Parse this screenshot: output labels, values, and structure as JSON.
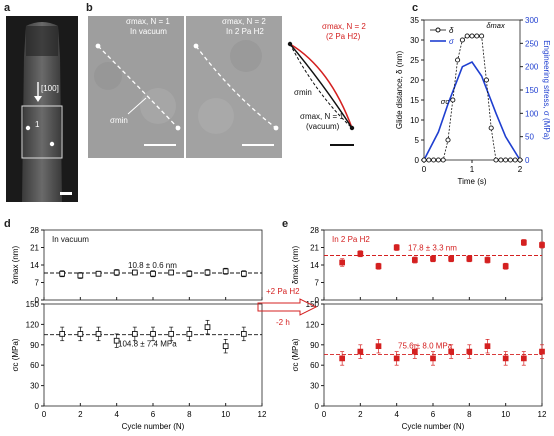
{
  "panel_letters": [
    "a",
    "b",
    "c",
    "d",
    "e"
  ],
  "panel_a": {
    "direction_label": "[100]",
    "marker_1": "1"
  },
  "panel_b": {
    "img1_line1": "σmax, N = 1",
    "img1_line2": "In vacuum",
    "img1_arrow": "σmin",
    "img2_line1": "σmax, N = 2",
    "img2_line2": "In 2 Pa H2",
    "diag_red_line1": "σmax, N = 2",
    "diag_red_line2": "(2 Pa H2)",
    "diag_min": "σmin",
    "diag_black_line1": "σmax, N = 1",
    "diag_black_line2": "(vacuum)",
    "colors": {
      "red": "#d42020",
      "black": "#111111"
    }
  },
  "chart_data": [
    {
      "panel": "c",
      "type": "line",
      "xlabel": "Time (s)",
      "ylabel_left": "Glide distance, δ (nm)",
      "ylabel_right": "Engineering stress, σ (MPa)",
      "xlim": [
        0,
        2
      ],
      "ylim_left": [
        0,
        35
      ],
      "ylim_right": [
        0,
        300
      ],
      "xticks": [
        0,
        1,
        2
      ],
      "yticks_left": [
        0,
        5,
        10,
        15,
        20,
        25,
        30,
        35
      ],
      "yticks_right": [
        0,
        50,
        100,
        150,
        200,
        250,
        300
      ],
      "annotations": [
        "σc",
        "δmax"
      ],
      "series": [
        {
          "name": "δ",
          "color": "#111111",
          "marker": "open-circle",
          "x": [
            0,
            0.1,
            0.2,
            0.3,
            0.4,
            0.5,
            0.6,
            0.7,
            0.8,
            0.9,
            1.0,
            1.1,
            1.2,
            1.3,
            1.4,
            1.5,
            1.6,
            1.7,
            1.8,
            1.9,
            2.0
          ],
          "y": [
            0,
            0,
            0,
            0,
            0,
            5,
            15,
            25,
            30,
            31,
            31,
            31,
            31,
            20,
            8,
            0,
            0,
            0,
            0,
            0,
            0
          ]
        },
        {
          "name": "σ",
          "color": "#1f3fd0",
          "x": [
            0,
            0.3,
            0.5,
            0.8,
            1.0,
            1.2,
            1.5,
            1.7,
            2.0
          ],
          "y": [
            0,
            60,
            120,
            200,
            210,
            180,
            100,
            50,
            0
          ]
        }
      ]
    },
    {
      "panel": "d",
      "type": "scatter",
      "annotation": "In vacuum",
      "xlabel": "Cycle number (N)",
      "xlim": [
        0,
        12
      ],
      "xticks": [
        0,
        2,
        4,
        6,
        8,
        10,
        12
      ],
      "top": {
        "ylabel": "δmax (nm)",
        "ylim": [
          0,
          28
        ],
        "yticks": [
          0,
          7,
          14,
          21,
          28
        ],
        "mean_label": "10.8 ± 0.6 nm",
        "mean": 10.8,
        "x": [
          1,
          2,
          3,
          4,
          5,
          6,
          7,
          8,
          9,
          10,
          11
        ],
        "y": [
          10.5,
          9.8,
          10.5,
          11.0,
          11.0,
          10.5,
          11.0,
          10.5,
          11.0,
          11.5,
          10.5
        ],
        "err": [
          1.2,
          1.2,
          1.0,
          1.2,
          1.0,
          1.2,
          1.0,
          1.2,
          1.2,
          1.2,
          1.2
        ]
      },
      "bottom": {
        "ylabel": "σc (MPa)",
        "ylim": [
          0,
          150
        ],
        "yticks": [
          0,
          30,
          60,
          90,
          120,
          150
        ],
        "mean_label": "104.8 ± 7.4 MPa",
        "mean": 104.8,
        "x": [
          1,
          2,
          3,
          4,
          5,
          6,
          7,
          8,
          9,
          10,
          11
        ],
        "y": [
          106,
          106,
          106,
          96,
          106,
          106,
          106,
          106,
          116,
          88,
          106
        ],
        "err": [
          10,
          10,
          10,
          10,
          10,
          10,
          10,
          10,
          10,
          10,
          10
        ]
      }
    },
    {
      "panel": "e",
      "type": "scatter",
      "annotation": "In 2 Pa H2",
      "xlabel": "Cycle number (N)",
      "xlim": [
        0,
        12
      ],
      "xticks": [
        0,
        2,
        4,
        6,
        8,
        10,
        12
      ],
      "top": {
        "ylabel": "δmax (nm)",
        "ylim": [
          0,
          28
        ],
        "yticks": [
          0,
          7,
          14,
          21,
          28
        ],
        "mean_label": "17.8 ± 3.3 nm",
        "mean": 17.8,
        "x": [
          1,
          2,
          3,
          4,
          5,
          6,
          7,
          8,
          9,
          10,
          11,
          12
        ],
        "y": [
          15,
          18.5,
          13.5,
          21,
          16,
          16.5,
          16.5,
          16.5,
          16,
          13.5,
          23,
          22
        ],
        "err": [
          1.5,
          1.2,
          1.2,
          1.2,
          1.2,
          1.2,
          1.2,
          1.2,
          1.2,
          1.2,
          1.2,
          1.2
        ]
      },
      "bottom": {
        "ylabel": "σc (MPa)",
        "ylim": [
          0,
          150
        ],
        "yticks": [
          0,
          30,
          60,
          90,
          120,
          150
        ],
        "mean_label": "75.6 ± 8.0 MPa",
        "mean": 75.6,
        "x": [
          1,
          2,
          3,
          4,
          5,
          6,
          7,
          8,
          9,
          10,
          11,
          12
        ],
        "y": [
          70,
          80,
          88,
          70,
          80,
          70,
          80,
          80,
          88,
          70,
          70,
          80
        ],
        "err": [
          10,
          10,
          10,
          10,
          10,
          10,
          10,
          10,
          10,
          10,
          10,
          10
        ]
      }
    }
  ],
  "transition": {
    "label_top": "+2 Pa H2",
    "label_bottom": "-2 h",
    "color": "#d42020"
  },
  "colors": {
    "red": "#d42020",
    "blue": "#1f3fd0",
    "black": "#111111"
  }
}
